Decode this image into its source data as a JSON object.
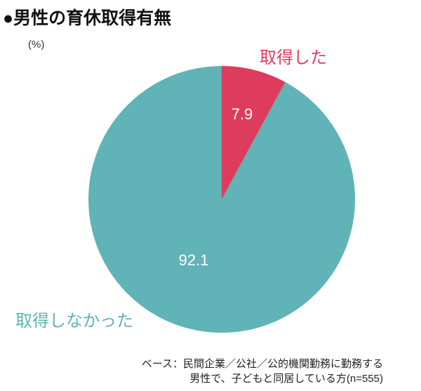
{
  "chart_data": {
    "type": "pie",
    "title": "●男性の育休取得有無",
    "unit": "(%)",
    "slices": [
      {
        "label": "取得した",
        "value": 7.9,
        "value_label": "7.9",
        "color": "#DE3C5D"
      },
      {
        "label": "取得しなかった",
        "value": 92.1,
        "value_label": "92.1",
        "color": "#60B3B7"
      }
    ]
  },
  "note": {
    "line1": "ベース：民間企業／公社／公的機関勤務に勤務する",
    "line2": "男性で、子どもと同居している方(n=555)"
  }
}
